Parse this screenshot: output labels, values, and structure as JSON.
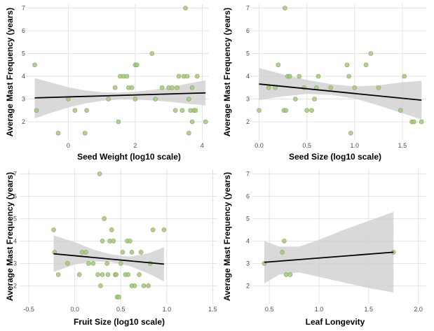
{
  "colors": {
    "point_fill": "#a7c77c",
    "point_stroke": "#7fa857",
    "ribbon": "#cfcfcf",
    "trend_line": "#000000",
    "grid": "#e3e3e3",
    "background": "#ffffff"
  },
  "chart_data": [
    {
      "type": "scatter",
      "title": "",
      "xlabel": "Seed Weight (log10 scale)",
      "ylabel": "Average Mast Frequency (years)",
      "grid": true,
      "xlim": [
        -1.2,
        4.2
      ],
      "ylim": [
        1.2,
        7.2
      ],
      "x_ticks": [
        "0",
        "2",
        "4"
      ],
      "x_tick_values": [
        0,
        2,
        4
      ],
      "y_ticks": [
        "2",
        "3",
        "4",
        "5",
        "6",
        "7"
      ],
      "y_tick_values": [
        2,
        3,
        4,
        5,
        6,
        7
      ],
      "points": [
        {
          "x": -1.0,
          "y": 4.5
        },
        {
          "x": -0.95,
          "y": 2.5
        },
        {
          "x": -0.3,
          "y": 1.5
        },
        {
          "x": 0.0,
          "y": 3.0
        },
        {
          "x": 0.2,
          "y": 2.5
        },
        {
          "x": 0.5,
          "y": 1.5
        },
        {
          "x": 0.55,
          "y": 2.5
        },
        {
          "x": 1.2,
          "y": 3.0
        },
        {
          "x": 1.4,
          "y": 3.5
        },
        {
          "x": 1.5,
          "y": 2.0
        },
        {
          "x": 1.55,
          "y": 4.0
        },
        {
          "x": 1.65,
          "y": 4.0
        },
        {
          "x": 1.75,
          "y": 4.0
        },
        {
          "x": 1.8,
          "y": 3.5
        },
        {
          "x": 1.9,
          "y": 3.5
        },
        {
          "x": 2.0,
          "y": 4.5
        },
        {
          "x": 2.05,
          "y": 4.5
        },
        {
          "x": 2.0,
          "y": 3.0
        },
        {
          "x": 2.5,
          "y": 5.0
        },
        {
          "x": 2.6,
          "y": 3.0
        },
        {
          "x": 2.8,
          "y": 3.5
        },
        {
          "x": 3.0,
          "y": 3.5
        },
        {
          "x": 3.1,
          "y": 3.5
        },
        {
          "x": 3.2,
          "y": 2.5
        },
        {
          "x": 3.25,
          "y": 3.5
        },
        {
          "x": 3.3,
          "y": 4.0
        },
        {
          "x": 3.4,
          "y": 2.5
        },
        {
          "x": 3.45,
          "y": 4.0
        },
        {
          "x": 3.5,
          "y": 7.0
        },
        {
          "x": 3.55,
          "y": 4.0
        },
        {
          "x": 3.6,
          "y": 3.0
        },
        {
          "x": 3.6,
          "y": 1.5
        },
        {
          "x": 3.65,
          "y": 2.5
        },
        {
          "x": 3.7,
          "y": 3.5
        },
        {
          "x": 3.7,
          "y": 2.0
        },
        {
          "x": 3.75,
          "y": 2.5
        },
        {
          "x": 3.8,
          "y": 2.5
        },
        {
          "x": 3.85,
          "y": 4.0
        },
        {
          "x": 4.1,
          "y": 2.0
        }
      ],
      "trend": {
        "x": [
          -1.0,
          4.1
        ],
        "y": [
          3.05,
          3.27
        ]
      },
      "ribbon": {
        "x": [
          -1.0,
          -0.5,
          0.0,
          0.5,
          1.0,
          1.5,
          2.0,
          2.5,
          3.0,
          3.5,
          4.1
        ],
        "lower": [
          2.15,
          2.4,
          2.62,
          2.8,
          2.92,
          2.98,
          2.98,
          2.94,
          2.88,
          2.8,
          2.72
        ],
        "upper": [
          3.92,
          3.72,
          3.52,
          3.38,
          3.3,
          3.28,
          3.32,
          3.4,
          3.5,
          3.66,
          3.82
        ]
      }
    },
    {
      "type": "scatter",
      "title": "",
      "xlabel": "Seed Size (log10 scale)",
      "ylabel": "Average Mast Frequency (years)",
      "grid": true,
      "xlim": [
        -0.07,
        1.75
      ],
      "ylim": [
        1.2,
        7.2
      ],
      "x_ticks": [
        "0.0",
        "0.5",
        "1.0",
        "1.5"
      ],
      "x_tick_values": [
        0,
        0.5,
        1.0,
        1.5
      ],
      "y_ticks": [
        "2",
        "3",
        "4",
        "5",
        "6",
        "7"
      ],
      "y_tick_values": [
        2,
        3,
        4,
        5,
        6,
        7
      ],
      "points": [
        {
          "x": 0.0,
          "y": 2.5
        },
        {
          "x": 0.1,
          "y": 3.5
        },
        {
          "x": 0.17,
          "y": 3.5
        },
        {
          "x": 0.2,
          "y": 4.5
        },
        {
          "x": 0.27,
          "y": 7.0
        },
        {
          "x": 0.26,
          "y": 2.5
        },
        {
          "x": 0.28,
          "y": 2.5
        },
        {
          "x": 0.3,
          "y": 4.0
        },
        {
          "x": 0.32,
          "y": 4.0
        },
        {
          "x": 0.38,
          "y": 3.0
        },
        {
          "x": 0.42,
          "y": 4.0
        },
        {
          "x": 0.47,
          "y": 3.5
        },
        {
          "x": 0.5,
          "y": 2.5
        },
        {
          "x": 0.55,
          "y": 2.5
        },
        {
          "x": 0.58,
          "y": 3.0
        },
        {
          "x": 0.6,
          "y": 3.5
        },
        {
          "x": 0.62,
          "y": 4.0
        },
        {
          "x": 0.75,
          "y": 3.5
        },
        {
          "x": 0.92,
          "y": 4.5
        },
        {
          "x": 0.94,
          "y": 4.0
        },
        {
          "x": 0.96,
          "y": 1.5
        },
        {
          "x": 1.0,
          "y": 3.5
        },
        {
          "x": 1.12,
          "y": 4.5
        },
        {
          "x": 1.17,
          "y": 5.0
        },
        {
          "x": 1.25,
          "y": 3.5
        },
        {
          "x": 1.48,
          "y": 2.5
        },
        {
          "x": 1.52,
          "y": 4.0
        },
        {
          "x": 1.6,
          "y": 2.0
        },
        {
          "x": 1.62,
          "y": 2.0
        },
        {
          "x": 1.7,
          "y": 2.0
        }
      ],
      "trend": {
        "x": [
          0.0,
          1.7
        ],
        "y": [
          3.66,
          2.95
        ]
      },
      "ribbon": {
        "x": [
          0.0,
          0.25,
          0.5,
          0.75,
          1.0,
          1.25,
          1.5,
          1.7
        ],
        "lower": [
          2.95,
          3.12,
          3.22,
          3.18,
          3.02,
          2.72,
          2.38,
          2.1
        ],
        "upper": [
          4.37,
          4.08,
          3.84,
          3.66,
          3.55,
          3.6,
          3.74,
          3.8
        ]
      }
    },
    {
      "type": "scatter",
      "title": "",
      "xlabel": "Fruit Size (log10 scale)",
      "ylabel": "Average Mast Frequency (years)",
      "grid": true,
      "xlim": [
        -0.6,
        1.55
      ],
      "ylim": [
        1.2,
        7.2
      ],
      "x_ticks": [
        "-0.5",
        "0.0",
        "0.5",
        "1.0",
        "1.5"
      ],
      "x_tick_values": [
        -0.5,
        0,
        0.5,
        1.0,
        1.5
      ],
      "y_ticks": [
        "2",
        "3",
        "4",
        "5",
        "6",
        "7"
      ],
      "y_tick_values": [
        2,
        3,
        4,
        5,
        6,
        7
      ],
      "points": [
        {
          "x": -0.23,
          "y": 4.5
        },
        {
          "x": -0.22,
          "y": 3.5
        },
        {
          "x": -0.18,
          "y": 2.5
        },
        {
          "x": -0.08,
          "y": 3.0
        },
        {
          "x": 0.05,
          "y": 2.5
        },
        {
          "x": 0.08,
          "y": 3.5
        },
        {
          "x": 0.12,
          "y": 3.5
        },
        {
          "x": 0.15,
          "y": 3.0
        },
        {
          "x": 0.2,
          "y": 3.0
        },
        {
          "x": 0.25,
          "y": 2.5
        },
        {
          "x": 0.27,
          "y": 7.0
        },
        {
          "x": 0.28,
          "y": 2.0
        },
        {
          "x": 0.3,
          "y": 2.5
        },
        {
          "x": 0.3,
          "y": 4.0
        },
        {
          "x": 0.32,
          "y": 5.0
        },
        {
          "x": 0.35,
          "y": 3.0
        },
        {
          "x": 0.36,
          "y": 2.5
        },
        {
          "x": 0.38,
          "y": 4.0
        },
        {
          "x": 0.4,
          "y": 4.5
        },
        {
          "x": 0.42,
          "y": 4.0
        },
        {
          "x": 0.44,
          "y": 2.5
        },
        {
          "x": 0.45,
          "y": 2.5
        },
        {
          "x": 0.46,
          "y": 1.5
        },
        {
          "x": 0.48,
          "y": 1.5
        },
        {
          "x": 0.5,
          "y": 3.0
        },
        {
          "x": 0.52,
          "y": 3.5
        },
        {
          "x": 0.55,
          "y": 2.5
        },
        {
          "x": 0.57,
          "y": 4.0
        },
        {
          "x": 0.58,
          "y": 2.5
        },
        {
          "x": 0.6,
          "y": 4.0
        },
        {
          "x": 0.62,
          "y": 3.5
        },
        {
          "x": 0.62,
          "y": 2.0
        },
        {
          "x": 0.65,
          "y": 2.0
        },
        {
          "x": 0.7,
          "y": 2.5
        },
        {
          "x": 0.72,
          "y": 3.5
        },
        {
          "x": 0.75,
          "y": 2.0
        },
        {
          "x": 0.8,
          "y": 2.0
        },
        {
          "x": 0.82,
          "y": 3.0
        },
        {
          "x": 0.85,
          "y": 4.5
        },
        {
          "x": 0.97,
          "y": 4.5
        }
      ],
      "trend": {
        "x": [
          -0.23,
          0.97
        ],
        "y": [
          3.43,
          2.97
        ]
      },
      "ribbon": {
        "x": [
          -0.23,
          0.0,
          0.2,
          0.4,
          0.6,
          0.8,
          0.97
        ],
        "lower": [
          2.62,
          2.95,
          3.1,
          3.05,
          2.88,
          2.55,
          2.2
        ],
        "upper": [
          4.25,
          3.95,
          3.62,
          3.4,
          3.3,
          3.45,
          3.72
        ]
      }
    },
    {
      "type": "scatter",
      "title": "",
      "xlabel": "Leaf Longevity",
      "ylabel": "Average Mast Frequency (years)",
      "grid": true,
      "xlim": [
        0.33,
        2.08
      ],
      "ylim": [
        1.2,
        7.2
      ],
      "x_ticks": [
        "0.5",
        "1.0",
        "1.5",
        "2.0"
      ],
      "x_tick_values": [
        0.5,
        1.0,
        1.5,
        2.0
      ],
      "y_ticks": [
        "2",
        "3",
        "4",
        "5",
        "6",
        "7"
      ],
      "y_tick_values": [
        2,
        3,
        4,
        5,
        6,
        7
      ],
      "points": [
        {
          "x": 0.45,
          "y": 3.0
        },
        {
          "x": 0.63,
          "y": 3.5
        },
        {
          "x": 0.65,
          "y": 4.0
        },
        {
          "x": 0.67,
          "y": 2.5
        },
        {
          "x": 0.71,
          "y": 2.5
        },
        {
          "x": 1.75,
          "y": 3.5
        }
      ],
      "trend": {
        "x": [
          0.45,
          1.75
        ],
        "y": [
          3.05,
          3.5
        ]
      },
      "ribbon": {
        "x": [
          0.45,
          0.6,
          0.8,
          1.0,
          1.25,
          1.5,
          1.75
        ],
        "lower": [
          2.1,
          2.5,
          2.6,
          2.4,
          2.15,
          1.9,
          1.7
        ],
        "upper": [
          4.0,
          3.75,
          3.75,
          4.05,
          4.5,
          4.9,
          5.3
        ]
      }
    }
  ]
}
